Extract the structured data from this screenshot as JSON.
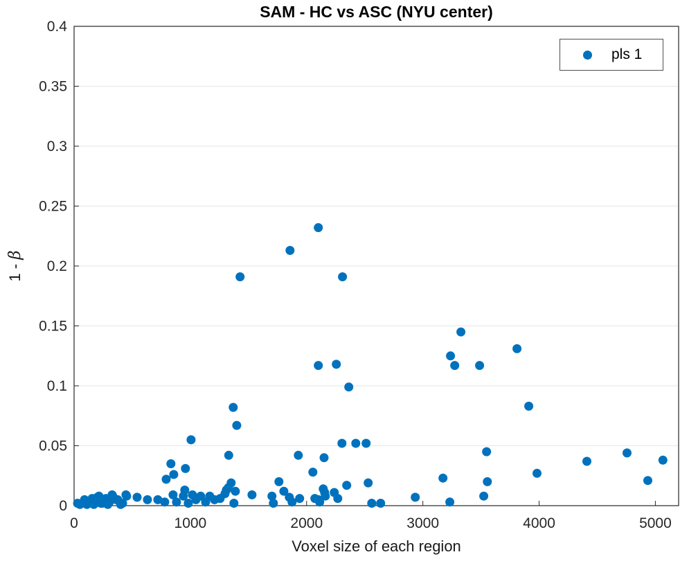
{
  "chart_data": {
    "type": "scatter",
    "title": "SAM - HC vs ASC (NYU center)",
    "xlabel": "Voxel size of each region",
    "ylabel": "1 - β",
    "ylabel_text": "1 - ",
    "ylabel_symbol": "β",
    "xlim": [
      0,
      5200
    ],
    "ylim": [
      0,
      0.4
    ],
    "xticks": [
      0,
      1000,
      2000,
      3000,
      4000,
      5000
    ],
    "ytick_labels": [
      "0",
      "0.05",
      "0.1",
      "0.15",
      "0.2",
      "0.25",
      "0.3",
      "0.35",
      "0.4"
    ],
    "grid": "horizontal-only",
    "colors": {
      "marker": "#0072BD",
      "axis": "#262626",
      "grid": "#e6e6e6",
      "tick_text": "#262626"
    },
    "legend": {
      "position": "top-right",
      "entries": [
        {
          "label": "pls 1",
          "marker_color": "#0072BD"
        }
      ]
    },
    "series": [
      {
        "name": "pls 1",
        "color": "#0072BD",
        "points": [
          [
            30,
            0.002
          ],
          [
            50,
            0.001
          ],
          [
            90,
            0.005
          ],
          [
            110,
            0.001
          ],
          [
            125,
            0.002
          ],
          [
            145,
            0.004
          ],
          [
            155,
            0.006
          ],
          [
            170,
            0.001
          ],
          [
            185,
            0.003
          ],
          [
            200,
            0.007
          ],
          [
            214,
            0.008
          ],
          [
            230,
            0.002
          ],
          [
            244,
            0.002
          ],
          [
            260,
            0.005
          ],
          [
            274,
            0.006
          ],
          [
            290,
            0.001
          ],
          [
            304,
            0.003
          ],
          [
            327,
            0.009
          ],
          [
            333,
            0.008
          ],
          [
            363,
            0.005
          ],
          [
            375,
            0.005
          ],
          [
            400,
            0.001
          ],
          [
            417,
            0.002
          ],
          [
            446,
            0.009
          ],
          [
            452,
            0.008
          ],
          [
            542,
            0.007
          ],
          [
            631,
            0.005
          ],
          [
            720,
            0.005
          ],
          [
            780,
            0.003
          ],
          [
            792,
            0.022
          ],
          [
            833,
            0.035
          ],
          [
            851,
            0.009
          ],
          [
            857,
            0.026
          ],
          [
            881,
            0.003
          ],
          [
            940,
            0.008
          ],
          [
            952,
            0.013
          ],
          [
            958,
            0.031
          ],
          [
            982,
            0.002
          ],
          [
            1006,
            0.055
          ],
          [
            1018,
            0.009
          ],
          [
            1048,
            0.005
          ],
          [
            1089,
            0.008
          ],
          [
            1131,
            0.003
          ],
          [
            1167,
            0.008
          ],
          [
            1208,
            0.005
          ],
          [
            1256,
            0.006
          ],
          [
            1298,
            0.01
          ],
          [
            1310,
            0.013
          ],
          [
            1330,
            0.042
          ],
          [
            1327,
            0.015
          ],
          [
            1351,
            0.019
          ],
          [
            1369,
            0.082
          ],
          [
            1375,
            0.002
          ],
          [
            1387,
            0.012
          ],
          [
            1399,
            0.067
          ],
          [
            1428,
            0.191
          ],
          [
            1530,
            0.009
          ],
          [
            1702,
            0.008
          ],
          [
            1714,
            0.002
          ],
          [
            1762,
            0.02
          ],
          [
            1804,
            0.012
          ],
          [
            1851,
            0.007
          ],
          [
            1857,
            0.213
          ],
          [
            1875,
            0.003
          ],
          [
            1929,
            0.042
          ],
          [
            1940,
            0.006
          ],
          [
            2054,
            0.028
          ],
          [
            2071,
            0.006
          ],
          [
            2101,
            0.232
          ],
          [
            2101,
            0.117
          ],
          [
            2101,
            0.005
          ],
          [
            2113,
            0.003
          ],
          [
            2143,
            0.014
          ],
          [
            2150,
            0.04
          ],
          [
            2155,
            0.011
          ],
          [
            2161,
            0.008
          ],
          [
            2238,
            0.011
          ],
          [
            2256,
            0.118
          ],
          [
            2268,
            0.006
          ],
          [
            2304,
            0.052
          ],
          [
            2309,
            0.191
          ],
          [
            2345,
            0.017
          ],
          [
            2363,
            0.099
          ],
          [
            2423,
            0.052
          ],
          [
            2512,
            0.052
          ],
          [
            2530,
            0.019
          ],
          [
            2560,
            0.002
          ],
          [
            2637,
            0.002
          ],
          [
            2935,
            0.007
          ],
          [
            3173,
            0.023
          ],
          [
            3232,
            0.003
          ],
          [
            3238,
            0.125
          ],
          [
            3274,
            0.117
          ],
          [
            3327,
            0.145
          ],
          [
            3488,
            0.117
          ],
          [
            3524,
            0.008
          ],
          [
            3548,
            0.045
          ],
          [
            3555,
            0.02
          ],
          [
            3810,
            0.131
          ],
          [
            3911,
            0.083
          ],
          [
            3982,
            0.027
          ],
          [
            4411,
            0.037
          ],
          [
            4756,
            0.044
          ],
          [
            4935,
            0.021
          ],
          [
            5065,
            0.038
          ]
        ]
      }
    ]
  }
}
